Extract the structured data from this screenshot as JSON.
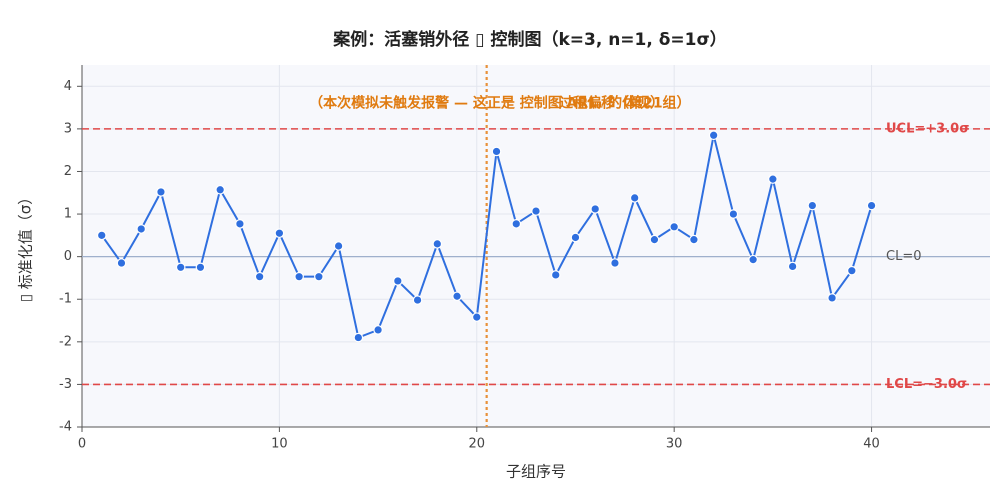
{
  "chart_data": {
    "type": "line",
    "title": "案例：活塞销外径 ▯ 控制图（k=3, n=1, δ=1σ）",
    "x_label": "子组序号",
    "y_label": "▯ 标准化值（σ）",
    "x": [
      1,
      2,
      3,
      4,
      5,
      6,
      7,
      8,
      9,
      10,
      11,
      12,
      13,
      14,
      15,
      16,
      17,
      18,
      19,
      20,
      21,
      22,
      23,
      24,
      25,
      26,
      27,
      28,
      29,
      30,
      31,
      32,
      33,
      34,
      35,
      36,
      37,
      38,
      39,
      40
    ],
    "series": [
      {
        "name": "标准化值",
        "color": "#2f6fdf",
        "values": [
          0.5,
          -0.15,
          0.65,
          1.52,
          -0.25,
          -0.25,
          1.57,
          0.77,
          -0.47,
          0.55,
          -0.47,
          -0.47,
          0.25,
          -1.9,
          -1.72,
          -0.57,
          -1.02,
          0.3,
          -0.93,
          -1.42,
          2.47,
          0.77,
          1.07,
          -0.43,
          0.45,
          1.12,
          -0.15,
          1.38,
          0.4,
          0.7,
          0.4,
          2.85,
          1.0,
          -0.07,
          1.82,
          -0.23,
          1.2,
          -0.97,
          -0.33,
          1.2
        ]
      }
    ],
    "xlim": [
      0,
      46
    ],
    "xticks": [
      0,
      10,
      20,
      30,
      40
    ],
    "ylim": [
      -4,
      4.5
    ],
    "yticks": [
      -4,
      -3,
      -2,
      -1,
      0,
      1,
      2,
      3,
      4
    ],
    "grid": true,
    "hlines": [
      {
        "value": 3,
        "label": "UCL=+3.0σ",
        "color": "#e04848",
        "dashed": true
      },
      {
        "value": 0,
        "label": "CL=0",
        "color": "#9fb0cc",
        "dashed": false
      },
      {
        "value": -3,
        "label": "LCL=−3.0σ",
        "color": "#e04848",
        "dashed": true
      }
    ],
    "vline": {
      "value": 20.5,
      "color": "#e8913a"
    },
    "annotations": [
      {
        "text": "（本次模拟未触发报警 — 这正是 控制图 ARL₁ 的体现）",
        "x": 20.5,
        "y": 3.6,
        "color": "#e07b10"
      },
      {
        "text": "过程偏移（第21组）",
        "x": 27.5,
        "y": 3.6,
        "color": "#e07b10"
      }
    ]
  }
}
